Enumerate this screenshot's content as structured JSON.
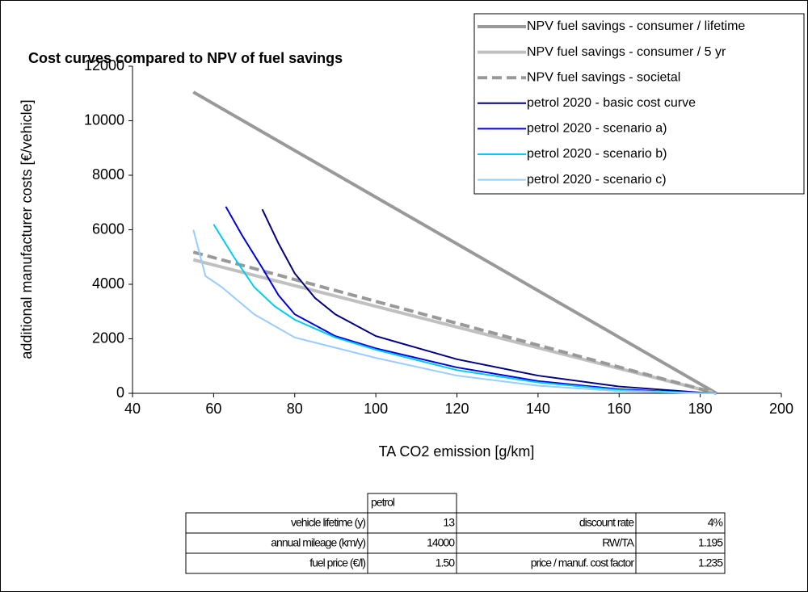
{
  "chart_data": {
    "type": "line",
    "title": "Cost curves compared to NPV of fuel savings",
    "x_label": "TA CO2 emission [g/km]",
    "y_label": "additional manufacturer  costs [€/vehicle]",
    "xlim": [
      40,
      200
    ],
    "xticks": [
      40,
      60,
      80,
      100,
      120,
      140,
      160,
      180,
      200
    ],
    "ylim": [
      0,
      12000
    ],
    "yticks": [
      0,
      2000,
      4000,
      6000,
      8000,
      10000,
      12000
    ],
    "legend": "top-right",
    "series": [
      {
        "name": "NPV fuel savings - consumer / lifetime",
        "color": "#999999",
        "width": 4,
        "dashed": false,
        "x": [
          55,
          184
        ],
        "values": [
          11050,
          0
        ]
      },
      {
        "name": "NPV fuel savings - consumer / 5 yr",
        "color": "#c0c0c0",
        "width": 4,
        "dashed": false,
        "x": [
          55,
          184
        ],
        "values": [
          4900,
          0
        ]
      },
      {
        "name": "NPV fuel savings - societal",
        "color": "#999999",
        "width": 4,
        "dashed": true,
        "x": [
          55,
          184
        ],
        "values": [
          5180,
          0
        ]
      },
      {
        "name": "petrol 2020 - basic cost curve",
        "color": "#000080",
        "width": 2,
        "dashed": false,
        "x": [
          72,
          76,
          80,
          85,
          90,
          100,
          120,
          140,
          160,
          180,
          184
        ],
        "values": [
          6750,
          5500,
          4400,
          3500,
          2900,
          2100,
          1250,
          650,
          250,
          30,
          0
        ]
      },
      {
        "name": "petrol 2020 - scenario a)",
        "color": "#0000dd",
        "width": 2,
        "dashed": false,
        "x": [
          63,
          67,
          72,
          76,
          80,
          90,
          100,
          120,
          140,
          160,
          180,
          184
        ],
        "values": [
          6850,
          5800,
          4600,
          3600,
          2900,
          2100,
          1650,
          950,
          450,
          150,
          10,
          0
        ]
      },
      {
        "name": "petrol 2020 - scenario b)",
        "color": "#00ccee",
        "width": 2,
        "dashed": false,
        "x": [
          60,
          65,
          70,
          75,
          80,
          90,
          100,
          120,
          140,
          160,
          180,
          184
        ],
        "values": [
          6200,
          5000,
          3900,
          3200,
          2700,
          2050,
          1600,
          850,
          400,
          120,
          10,
          0
        ]
      },
      {
        "name": "petrol 2020 - scenario c)",
        "color": "#99ccff",
        "width": 2,
        "dashed": false,
        "x": [
          55,
          58,
          62,
          70,
          80,
          100,
          120,
          140,
          160,
          180,
          184
        ],
        "values": [
          6000,
          4300,
          3900,
          2900,
          2050,
          1300,
          650,
          280,
          80,
          5,
          0
        ]
      }
    ]
  },
  "table": {
    "header": "petrol",
    "rows": [
      [
        "vehicle lifetime (y)",
        "13",
        "discount rate",
        "4%"
      ],
      [
        "annual mileage (km/y)",
        "14000",
        "RW/TA",
        "1.195"
      ],
      [
        "fuel price  (€/l)",
        "1.50",
        "price / manuf. cost factor",
        "1.235"
      ]
    ]
  }
}
